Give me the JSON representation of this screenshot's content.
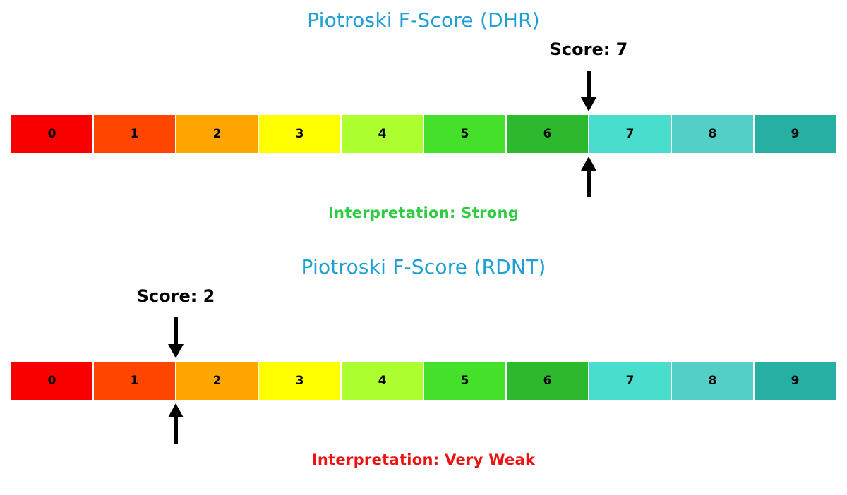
{
  "page": {
    "background_color": "#ffffff",
    "title_color": "#1f9fd4",
    "arrow_color": "#000000"
  },
  "chart_data": [
    {
      "type": "scale",
      "title": "Piotroski F-Score (DHR)",
      "title_color": "#1f9fd4",
      "categories": [
        0,
        1,
        2,
        3,
        4,
        5,
        6,
        7,
        8,
        9
      ],
      "segment_colors": [
        "#f80000",
        "#ff4500",
        "#ffa500",
        "#ffff00",
        "#adff2f",
        "#44e02a",
        "#2db92d",
        "#48ddcc",
        "#53cfc5",
        "#26afa3"
      ],
      "score": 7,
      "score_label": "Score: 7",
      "interpretation": "Interpretation: Strong",
      "interpretation_color": "#2ecc40",
      "xlim": [
        0,
        10
      ],
      "arrow_color": "#000000"
    },
    {
      "type": "scale",
      "title": "Piotroski F-Score (RDNT)",
      "title_color": "#1f9fd4",
      "categories": [
        0,
        1,
        2,
        3,
        4,
        5,
        6,
        7,
        8,
        9
      ],
      "segment_colors": [
        "#f80000",
        "#ff4500",
        "#ffa500",
        "#ffff00",
        "#adff2f",
        "#44e02a",
        "#2db92d",
        "#48ddcc",
        "#53cfc5",
        "#26afa3"
      ],
      "score": 2,
      "score_label": "Score: 2",
      "interpretation": "Interpretation: Very Weak",
      "interpretation_color": "#ee1111",
      "xlim": [
        0,
        10
      ],
      "arrow_color": "#000000"
    }
  ]
}
